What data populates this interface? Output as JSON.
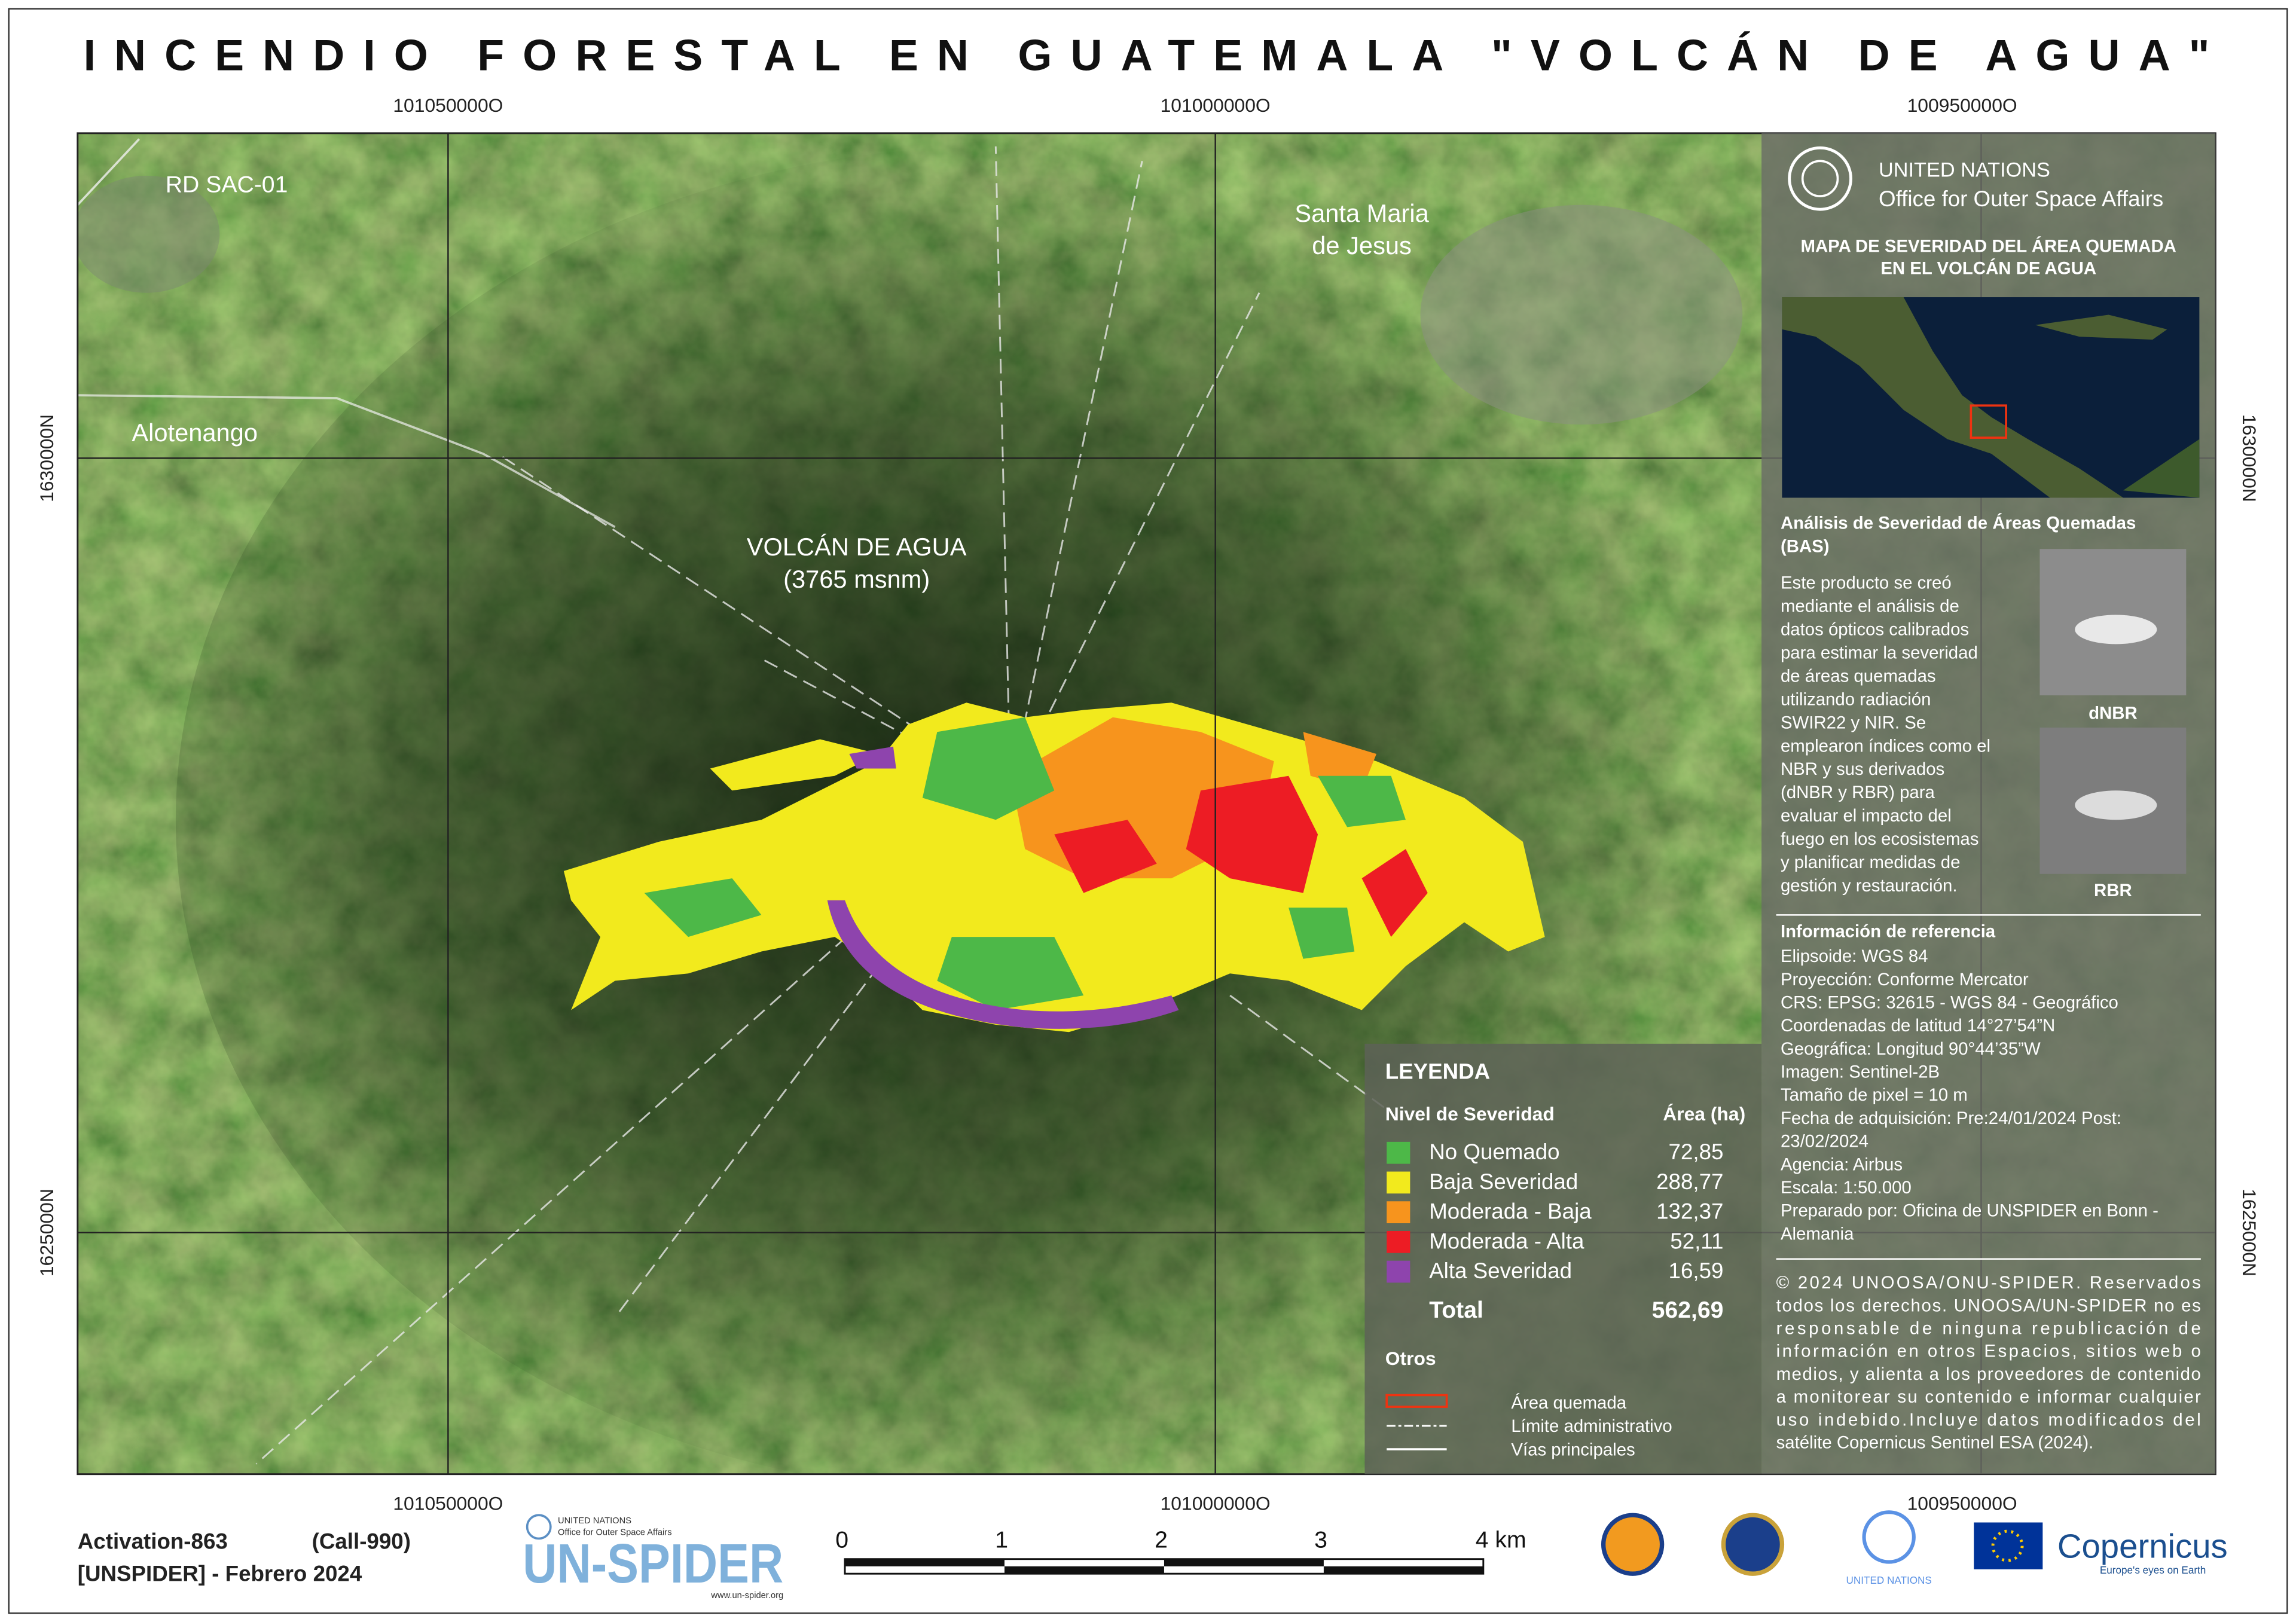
{
  "title": "INCENDIO FORESTAL EN GUATEMALA \"VOLCÁN DE AGUA\"",
  "coordinates": {
    "top": [
      "101050000O",
      "101000000O",
      "100950000O"
    ],
    "bottom": [
      "101050000O",
      "101000000O",
      "100950000O"
    ],
    "left": [
      "1630000N",
      "1625000N"
    ],
    "right": [
      "1630000N",
      "1625000N"
    ]
  },
  "map_labels": {
    "road": "RD SAC-01",
    "town_1": [
      "Santa Maria",
      "de Jesus"
    ],
    "town_2": "Alotenango",
    "volcano": [
      "VOLCÁN DE AGUA",
      "(3765 msnm)"
    ]
  },
  "panel": {
    "organization": [
      "UNITED NATIONS",
      "Office for Outer Space Affairs"
    ],
    "map_title": [
      "MAPA DE SEVERIDAD DEL ÁREA QUEMADA",
      "EN EL VOLCÁN DE AGUA"
    ],
    "analysis_title": [
      "Análisis de Severidad de Áreas Quemadas",
      "(BAS)"
    ],
    "analysis_text": [
      "Este producto se creó",
      "mediante el análisis de",
      "datos ópticos calibrados",
      "para estimar la severidad",
      "de áreas quemadas",
      "utilizando radiación",
      "SWIR22 y NIR. Se",
      "emplearon índices como el",
      "NBR y sus derivados",
      "(dNBR y RBR) para",
      "evaluar el impacto del",
      "fuego en los ecosistemas",
      "y planificar medidas de",
      "gestión y restauración."
    ],
    "thumbnails": [
      "dNBR",
      "RBR"
    ],
    "reference_title": "Información de referencia",
    "reference": [
      "Elipsoide: WGS 84",
      "Proyección: Conforme Mercator",
      "CRS: EPSG: 32615 - WGS 84 - Geográfico",
      "Coordenadas de latitud 14°27’54”N",
      "Geográfica: Longitud 90°44’35”W",
      "Imagen: Sentinel-2B",
      "Tamaño de pixel = 10 m",
      "Fecha de adquisición: Pre:24/01/2024 Post:",
      "23/02/2024",
      "Agencia: Airbus",
      "Escala: 1:50.000",
      "Preparado por: Oficina de UNSPIDER en Bonn -",
      "Alemania"
    ],
    "copyright": [
      "© 2024 UNOOSA/ONU-SPIDER. Reservados",
      "todos los derechos. UNOOSA/UN-SPIDER no es",
      "responsable de ninguna republicación de",
      "información en otros Espacios, sitios web o",
      "medios, y alienta a los proveedores de contenido",
      "a monitorear su contenido e informar cualquier",
      "uso indebido.Incluye datos modificados del",
      "satélite Copernicus Sentinel ESA (2024)."
    ]
  },
  "legend": {
    "title": "LEYENDA",
    "headers": [
      "Nivel de Severidad",
      "Área (ha)"
    ],
    "rows": [
      {
        "label": "No Quemado",
        "area": "72,85",
        "color": "#4db848"
      },
      {
        "label": "Baja Severidad",
        "area": "288,77",
        "color": "#f2ea1d"
      },
      {
        "label": "Moderada - Baja",
        "area": "132,37",
        "color": "#f7941d"
      },
      {
        "label": "Moderada - Alta",
        "area": "52,11",
        "color": "#ed1c24"
      },
      {
        "label": "Alta Severidad",
        "area": "16,59",
        "color": "#8e44ad"
      }
    ],
    "total": {
      "label": "Total",
      "area": "562,69"
    },
    "others_title": "Otros",
    "others": [
      "Área quemada",
      "Límite administrativo",
      "Vías principales"
    ]
  },
  "footer": {
    "activation": "Activation-863",
    "call": "(Call-990)",
    "credit": "[UNSPIDER] - Febrero 2024",
    "scale": [
      "0",
      "1",
      "2",
      "3",
      "4 km"
    ],
    "logos": {
      "unspider_org": [
        "UNITED NATIONS",
        "Office for Outer Space Affairs"
      ],
      "unspider": "UN-SPIDER",
      "unspider_url": "www.un-spider.org",
      "un": "UNITED NATIONS",
      "copernicus": "Copernicus",
      "copernicus_tagline": "Europe's eyes on Earth"
    }
  }
}
